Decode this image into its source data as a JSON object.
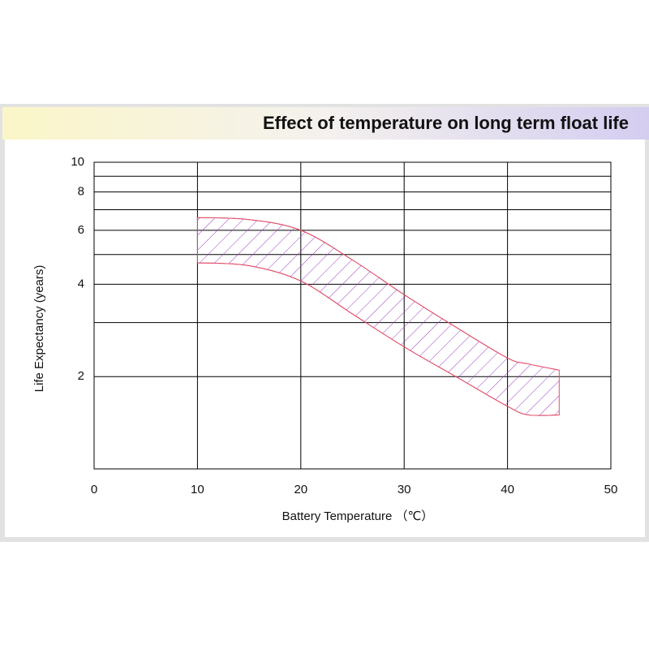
{
  "chart_data": {
    "type": "band",
    "title": "Effect of temperature on long term float life",
    "x_label": "Battery Temperature （℃）",
    "y_label": "Life Expectancy (years)",
    "x": [
      10,
      15,
      20,
      25,
      30,
      35,
      40,
      42,
      45
    ],
    "y_high": [
      6.6,
      6.5,
      6.0,
      4.8,
      3.7,
      2.9,
      2.3,
      2.2,
      2.1
    ],
    "y_low": [
      4.7,
      4.6,
      4.1,
      3.2,
      2.5,
      2.0,
      1.6,
      1.5,
      1.5
    ],
    "outline_color": "#e0506a",
    "hatch_color": "#9a3fc8",
    "xlim": [
      0,
      50
    ],
    "xticks": [
      0,
      10,
      20,
      30,
      40,
      50
    ],
    "ylim": [
      1,
      10
    ],
    "yticks": [
      2,
      4,
      6,
      8,
      10
    ],
    "y_minor_ticks": [
      1,
      3,
      5,
      7,
      9
    ],
    "y_log": true,
    "grid": true
  }
}
